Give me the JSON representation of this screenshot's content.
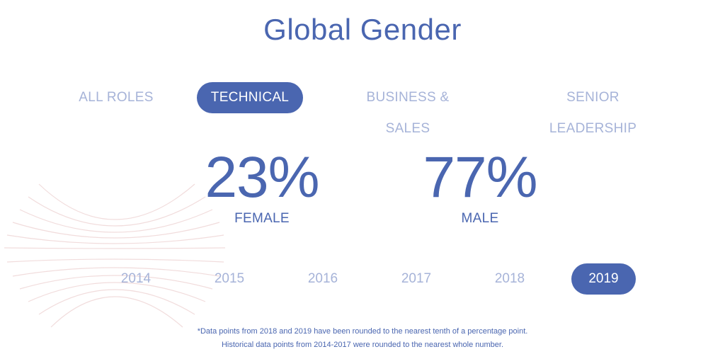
{
  "header": {
    "title": "Global Gender"
  },
  "role_tabs": [
    {
      "label": "ALL ROLES",
      "active": false
    },
    {
      "label": "TECHNICAL",
      "active": true
    },
    {
      "label": "BUSINESS & SALES",
      "active": false
    },
    {
      "label": "SENIOR LEADERSHIP",
      "active": false
    }
  ],
  "stats": {
    "female": {
      "value": "23%",
      "label": "FEMALE"
    },
    "male": {
      "value": "77%",
      "label": "MALE"
    }
  },
  "years": [
    {
      "label": "2014",
      "active": false
    },
    {
      "label": "2015",
      "active": false
    },
    {
      "label": "2016",
      "active": false
    },
    {
      "label": "2017",
      "active": false
    },
    {
      "label": "2018",
      "active": false
    },
    {
      "label": "2019",
      "active": true
    }
  ],
  "footnote": {
    "line1": "*Data points from 2018 and 2019 have been rounded to the nearest tenth of a percentage point.",
    "line2": "Historical data points from 2014-2017 were rounded to the nearest whole number."
  },
  "colors": {
    "accent": "#4a66b0",
    "inactive": "#a6b3d8",
    "decor": "#f2dede"
  },
  "icons": {
    "decoration": "curved-lines-decoration"
  }
}
